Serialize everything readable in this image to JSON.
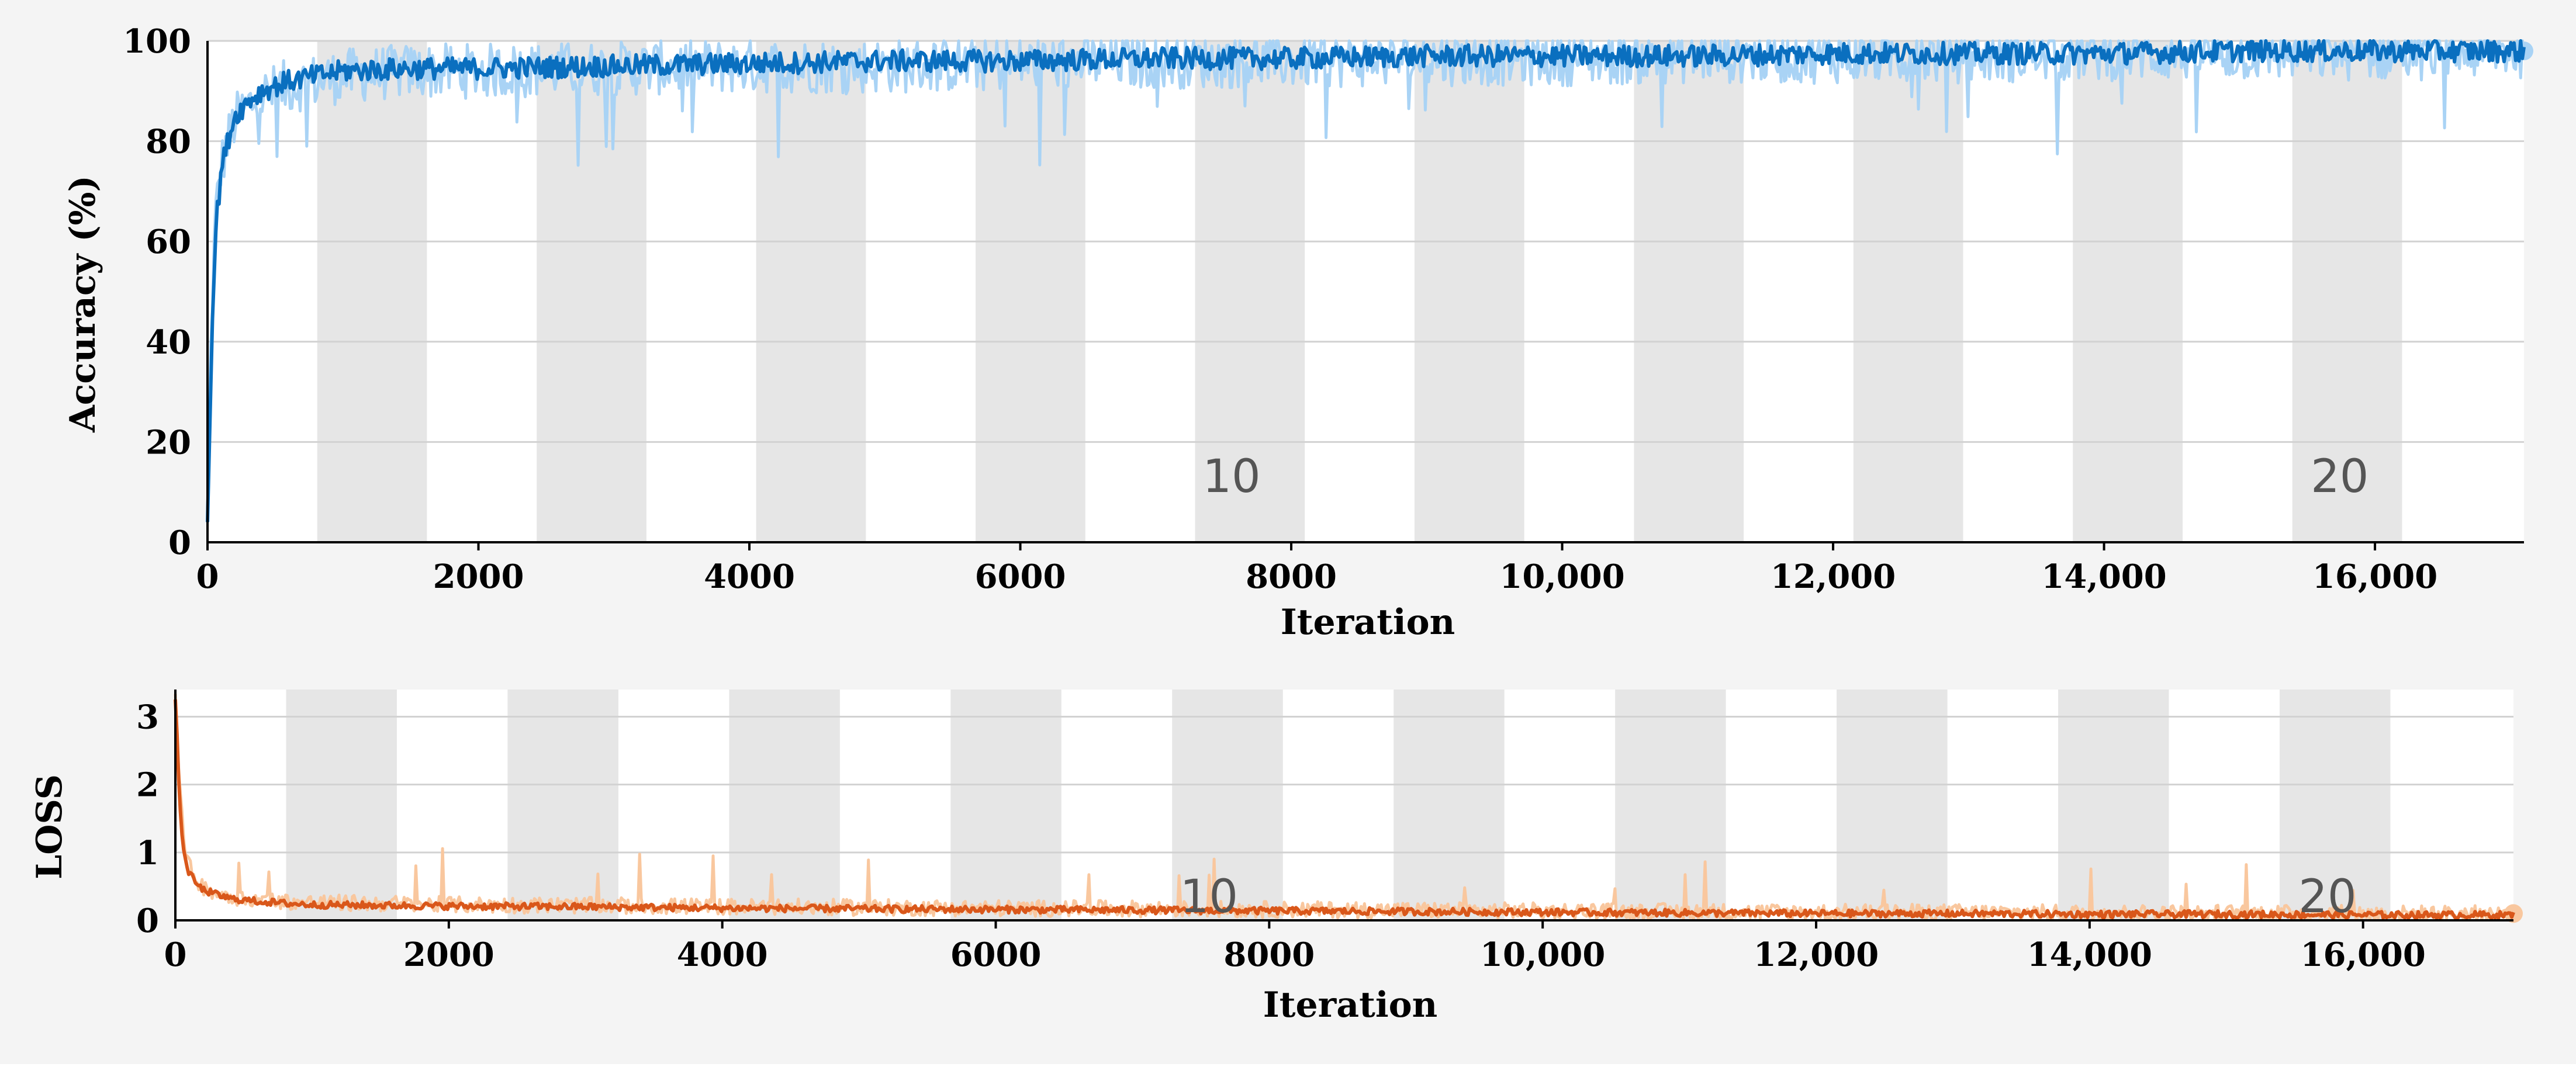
{
  "colors": {
    "background": "#f4f4f4",
    "plot_bg": "#ffffff",
    "epoch_band": "#e6e6e6",
    "grid": "#d2d2d2",
    "accuracy_raw": "#a9d3f5",
    "accuracy_smooth": "#0a6fbf",
    "loss_raw": "#f9c79e",
    "loss_smooth": "#d9571a"
  },
  "chart_data": [
    {
      "type": "line",
      "xlabel": "Iteration",
      "ylabel": "Accuracy  (%)",
      "xlim": [
        0,
        17100
      ],
      "ylim": [
        0,
        100
      ],
      "xticks": [
        0,
        2000,
        4000,
        6000,
        8000,
        10000,
        12000,
        14000,
        16000
      ],
      "xtick_labels": [
        "0",
        "2000",
        "4000",
        "6000",
        "8000",
        "10,000",
        "12,000",
        "14,000",
        "16,000"
      ],
      "yticks": [
        0,
        20,
        40,
        60,
        80,
        100
      ],
      "ytick_labels": [
        "0",
        "20",
        "40",
        "60",
        "80",
        "100"
      ],
      "grid": true,
      "epoch_bands": [
        [
          810,
          1620
        ],
        [
          2430,
          3240
        ],
        [
          4050,
          4860
        ],
        [
          5670,
          6480
        ],
        [
          7290,
          8100
        ],
        [
          8910,
          9720
        ],
        [
          10530,
          11340
        ],
        [
          12150,
          12960
        ],
        [
          13770,
          14580
        ],
        [
          15390,
          16200
        ]
      ],
      "epoch_annotations": [
        {
          "text": "10",
          "x": 7560,
          "y": 10
        },
        {
          "text": "20",
          "x": 15740,
          "y": 10
        }
      ],
      "series": [
        {
          "role": "raw",
          "x": [
            0,
            30,
            60,
            100,
            150,
            200,
            300,
            400,
            600,
            800,
            1000,
            1500,
            2000,
            3000,
            4000,
            5000,
            6000,
            7000,
            8000,
            9000,
            10000,
            11000,
            12000,
            13000,
            14000,
            15000,
            16000,
            17100
          ],
          "y": [
            5,
            45,
            65,
            75,
            80,
            84,
            87,
            89,
            91,
            92,
            93,
            94,
            94,
            94.5,
            95,
            95,
            95.5,
            96,
            96,
            96.5,
            96.5,
            97,
            97,
            97,
            97.5,
            97.5,
            97.5,
            98
          ]
        },
        {
          "role": "smoothed",
          "x": [
            0,
            30,
            60,
            100,
            150,
            200,
            300,
            400,
            600,
            800,
            1000,
            1500,
            2000,
            3000,
            4000,
            5000,
            6000,
            7000,
            8000,
            9000,
            10000,
            11000,
            12000,
            13000,
            14000,
            15000,
            16000,
            17100
          ],
          "y": [
            5,
            40,
            62,
            74,
            80,
            85,
            88,
            90,
            92,
            93,
            94,
            94.5,
            94.5,
            95,
            95.5,
            96,
            96,
            96.5,
            96.5,
            97,
            97,
            97,
            97.5,
            97.5,
            97.5,
            98,
            98,
            98
          ]
        }
      ]
    },
    {
      "type": "line",
      "xlabel": "Iteration",
      "ylabel": "LOSS",
      "xlim": [
        0,
        17100
      ],
      "ylim": [
        0,
        3.4
      ],
      "xticks": [
        0,
        2000,
        4000,
        6000,
        8000,
        10000,
        12000,
        14000,
        16000
      ],
      "xtick_labels": [
        "0",
        "2000",
        "4000",
        "6000",
        "8000",
        "10,000",
        "12,000",
        "14,000",
        "16,000"
      ],
      "yticks": [
        0,
        1,
        2,
        3
      ],
      "ytick_labels": [
        "0",
        "1",
        "2",
        "3"
      ],
      "grid": true,
      "epoch_bands": [
        [
          810,
          1620
        ],
        [
          2430,
          3240
        ],
        [
          4050,
          4860
        ],
        [
          5670,
          6480
        ],
        [
          7290,
          8100
        ],
        [
          8910,
          9720
        ],
        [
          10530,
          11340
        ],
        [
          12150,
          12960
        ],
        [
          13770,
          14580
        ],
        [
          15390,
          16200
        ]
      ],
      "epoch_annotations": [
        {
          "text": "10",
          "x": 7560,
          "y": 0.12
        },
        {
          "text": "20",
          "x": 15740,
          "y": 0.12
        }
      ],
      "series": [
        {
          "role": "raw",
          "x": [
            0,
            30,
            60,
            100,
            150,
            200,
            300,
            400,
            600,
            800,
            1000,
            1500,
            2000,
            3000,
            4000,
            5000,
            6000,
            7000,
            8000,
            9000,
            10000,
            11000,
            12000,
            13000,
            14000,
            15000,
            16000,
            17100
          ],
          "y": [
            3.3,
            2.0,
            1.2,
            0.8,
            0.6,
            0.5,
            0.4,
            0.35,
            0.3,
            0.28,
            0.26,
            0.25,
            0.23,
            0.22,
            0.2,
            0.19,
            0.18,
            0.17,
            0.16,
            0.15,
            0.14,
            0.13,
            0.12,
            0.12,
            0.11,
            0.11,
            0.1,
            0.1
          ]
        },
        {
          "role": "smoothed",
          "x": [
            0,
            30,
            60,
            100,
            150,
            200,
            300,
            400,
            600,
            800,
            1000,
            1500,
            2000,
            3000,
            4000,
            5000,
            6000,
            7000,
            8000,
            9000,
            10000,
            11000,
            12000,
            13000,
            14000,
            15000,
            16000,
            17100
          ],
          "y": [
            3.3,
            1.8,
            1.0,
            0.7,
            0.55,
            0.45,
            0.38,
            0.32,
            0.28,
            0.25,
            0.23,
            0.22,
            0.21,
            0.2,
            0.18,
            0.17,
            0.16,
            0.15,
            0.14,
            0.13,
            0.12,
            0.11,
            0.1,
            0.1,
            0.09,
            0.09,
            0.08,
            0.08
          ]
        }
      ]
    }
  ]
}
